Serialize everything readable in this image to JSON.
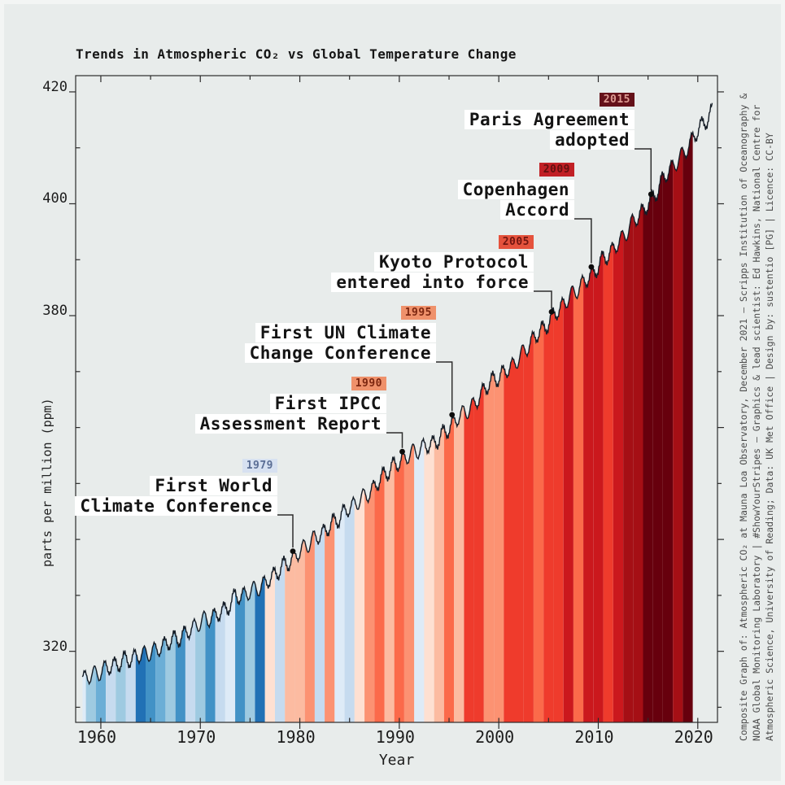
{
  "title": "Trends in Atmospheric CO₂ vs Global Temperature Change",
  "credit": {
    "lines": [
      "Composite Graph of: Atmospheric CO₂ at Mauna Loa Observatory, December 2021 — Scripps Institution of Oceanography &",
      "NOAA Global Monitoring Laboratory | #ShowYourStripes — Graphics & lead scientist: Ed Hawkins, National Centre for",
      "Atmospheric Science, University of Reading; Data: UK Met Office | Design by: sustentio [PG] | Licence: CC-BY"
    ]
  },
  "chart_data": {
    "type": "area",
    "title": "Trends in Atmospheric CO₂ vs Global Temperature Change",
    "xlabel": "Year",
    "ylabel": "parts per million (ppm)",
    "grid": false,
    "x_range": [
      1957.47,
      2021.98
    ],
    "y_range": [
      307.3,
      422.9
    ],
    "x_major_ticks": [
      1960,
      1970,
      1980,
      1990,
      2000,
      2010,
      2020
    ],
    "x_minor_ticks": [
      1965,
      1975,
      1985,
      1995,
      2005,
      2015
    ],
    "y_labeled_ticks": [
      320,
      380,
      400,
      420
    ],
    "y_minor_ticks": [
      310,
      330,
      340,
      350,
      360,
      370,
      390,
      410
    ],
    "co2_annual_ppm": {
      "start_year": 1958,
      "end_year": 2021,
      "values": [
        315.34,
        315.98,
        316.91,
        317.64,
        318.45,
        318.99,
        319.62,
        320.04,
        321.37,
        322.18,
        323.05,
        324.62,
        325.68,
        326.32,
        327.46,
        329.68,
        330.19,
        331.12,
        332.03,
        333.84,
        335.41,
        336.84,
        338.76,
        340.12,
        341.48,
        343.15,
        344.87,
        346.35,
        347.61,
        349.31,
        351.69,
        353.2,
        354.45,
        355.7,
        356.54,
        357.21,
        358.96,
        360.97,
        362.74,
        363.88,
        366.84,
        368.54,
        369.71,
        371.32,
        373.45,
        375.98,
        377.7,
        379.98,
        382.09,
        384.02,
        385.83,
        387.64,
        390.1,
        391.85,
        394.06,
        396.74,
        398.82,
        401.01,
        404.41,
        406.76,
        408.72,
        411.66,
        414.24,
        416.45
      ]
    },
    "seasonal_amplitude_ppm": 1.4,
    "temperature_stripes": {
      "start_year": 1958,
      "end_year": 2019,
      "colors": [
        "#deebf7",
        "#9ecae1",
        "#6baed6",
        "#c6dbef",
        "#9ecae1",
        "#c6dbef",
        "#2171b5",
        "#4292c6",
        "#6baed6",
        "#9ecae1",
        "#4292c6",
        "#c6dbef",
        "#9ecae1",
        "#4292c6",
        "#c6dbef",
        "#deebf7",
        "#4292c6",
        "#9ecae1",
        "#2171b5",
        "#fee0d2",
        "#c6dbef",
        "#fcbba1",
        "#fcbba1",
        "#fc9272",
        "#c6dbef",
        "#fc9272",
        "#deebf7",
        "#c6dbef",
        "#fee0d2",
        "#fc9272",
        "#fb6a4a",
        "#fcbba1",
        "#fb6a4a",
        "#fc9272",
        "#deebf7",
        "#fee0d2",
        "#fcbba1",
        "#fb6a4a",
        "#fcbba1",
        "#ef3b2c",
        "#ef3b2c",
        "#fc9272",
        "#fc9272",
        "#ef3b2c",
        "#ef3b2c",
        "#ef3b2c",
        "#fb6a4a",
        "#ef3b2c",
        "#ef3b2c",
        "#cb181d",
        "#fb6a4a",
        "#cb181d",
        "#cb181d",
        "#ef3b2c",
        "#cb181d",
        "#a50f15",
        "#a50f15",
        "#67000d",
        "#67000d",
        "#67000d",
        "#a50f15",
        "#67000d"
      ]
    },
    "annotations": [
      {
        "year": 1979,
        "badge": "1979",
        "badge_bg": "#d7e1f1",
        "badge_fg": "#5b6e95",
        "lines": [
          "First World",
          "Climate Conference"
        ]
      },
      {
        "year": 1990,
        "badge": "1990",
        "badge_bg": "#ef916b",
        "badge_fg": "#7c2610",
        "lines": [
          "First IPCC",
          "Assessment Report"
        ]
      },
      {
        "year": 1995,
        "badge": "1995",
        "badge_bg": "#ef916b",
        "badge_fg": "#7c2610",
        "lines": [
          "First UN Climate",
          "Change Conference"
        ]
      },
      {
        "year": 2005,
        "badge": "2005",
        "badge_bg": "#e5523c",
        "badge_fg": "#701510",
        "lines": [
          "Kyoto Protocol",
          "entered into force"
        ]
      },
      {
        "year": 2009,
        "badge": "2009",
        "badge_bg": "#c12025",
        "badge_fg": "#63100f",
        "lines": [
          "Copenhagen",
          "Accord"
        ]
      },
      {
        "year": 2015,
        "badge": "2015",
        "badge_bg": "#641119",
        "badge_fg": "#dd9b92",
        "lines": [
          "Paris Agreement",
          "adopted"
        ]
      }
    ],
    "colors": {
      "background": "#e8eceb",
      "label_box": "#ffffff",
      "curve": "#141c26",
      "axis": "#2b2b2b",
      "text": "#161616",
      "credit_text": "#4d4d4d"
    }
  }
}
